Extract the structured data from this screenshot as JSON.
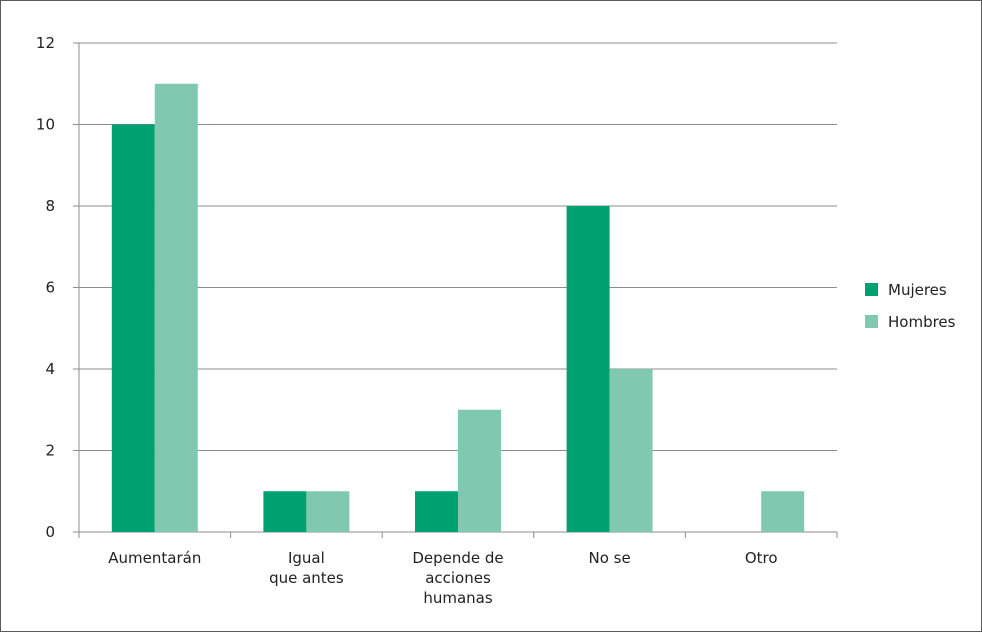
{
  "chart_data": {
    "type": "bar",
    "title": "",
    "xlabel": "",
    "ylabel": "",
    "ylim": [
      0,
      12
    ],
    "yticks": [
      0,
      2,
      4,
      6,
      8,
      10,
      12
    ],
    "grid": true,
    "legend_position": "right",
    "categories": [
      [
        "Aumentarán"
      ],
      [
        "Igual",
        "que antes"
      ],
      [
        "Depende de",
        "acciones",
        "humanas"
      ],
      [
        "No se"
      ],
      [
        "Otro"
      ]
    ],
    "series": [
      {
        "name": "Mujeres",
        "color": "#00a170",
        "values": [
          10,
          1,
          1,
          8,
          0
        ]
      },
      {
        "name": "Hombres",
        "color": "#80c8b0",
        "values": [
          11,
          1,
          3,
          4,
          1
        ]
      }
    ]
  }
}
